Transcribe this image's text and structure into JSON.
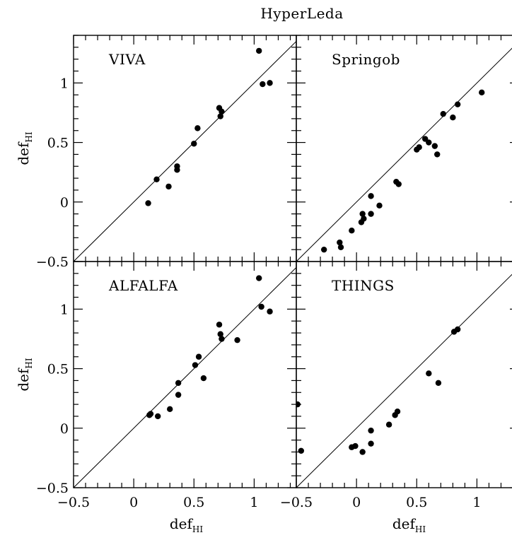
{
  "figure": {
    "title": "HyperLeda"
  },
  "chart_data": [
    {
      "type": "scatter",
      "panel": "VIVA",
      "xlabel": "def",
      "xlabel_sub": "HI",
      "ylabel": "def",
      "ylabel_sub": "HI",
      "xlim": [
        -0.5,
        1.35
      ],
      "ylim": [
        -0.5,
        1.4
      ],
      "xticks": [
        "-0.5",
        "0",
        "0.5",
        "1"
      ],
      "yticks": [
        "-0.5",
        "0",
        "0.5",
        "1"
      ],
      "reference_line": "y = x",
      "x": [
        0.12,
        0.19,
        0.29,
        0.36,
        0.36,
        0.5,
        0.53,
        0.71,
        0.72,
        0.73,
        1.04,
        1.07,
        1.13
      ],
      "y": [
        -0.01,
        0.19,
        0.13,
        0.3,
        0.27,
        0.49,
        0.62,
        0.79,
        0.72,
        0.76,
        1.27,
        0.99,
        1.0
      ]
    },
    {
      "type": "scatter",
      "panel": "Springob",
      "xlabel": "def",
      "xlabel_sub": "HI",
      "ylabel": "",
      "ylabel_sub": "",
      "xlim": [
        -0.5,
        1.35
      ],
      "ylim": [
        -0.5,
        1.4
      ],
      "xticks": [
        "-0.5",
        "0",
        "0.5",
        "1"
      ],
      "yticks": [
        "-0.5",
        "0",
        "0.5",
        "1"
      ],
      "reference_line": "y = x",
      "x": [
        -0.27,
        -0.14,
        -0.13,
        -0.04,
        0.04,
        0.05,
        0.06,
        0.12,
        0.12,
        0.19,
        0.33,
        0.35,
        0.5,
        0.52,
        0.57,
        0.6,
        0.65,
        0.67,
        0.72,
        0.8,
        0.84,
        1.04
      ],
      "y": [
        -0.4,
        -0.34,
        -0.38,
        -0.24,
        -0.17,
        -0.1,
        -0.14,
        -0.1,
        0.05,
        -0.03,
        0.17,
        0.15,
        0.44,
        0.46,
        0.53,
        0.5,
        0.47,
        0.4,
        0.74,
        0.71,
        0.82,
        0.92
      ]
    },
    {
      "type": "scatter",
      "panel": "ALFALFA",
      "xlabel": "def",
      "xlabel_sub": "HI",
      "ylabel": "def",
      "ylabel_sub": "HI",
      "xlim": [
        -0.5,
        1.35
      ],
      "ylim": [
        -0.5,
        1.4
      ],
      "xticks": [
        "-0.5",
        "0",
        "0.5",
        "1"
      ],
      "yticks": [
        "-0.5",
        "0",
        "0.5",
        "1"
      ],
      "reference_line": "y = x",
      "x": [
        0.13,
        0.14,
        0.2,
        0.3,
        0.37,
        0.37,
        0.51,
        0.54,
        0.58,
        0.71,
        0.72,
        0.73,
        0.86,
        1.04,
        1.06,
        1.13
      ],
      "y": [
        0.11,
        0.12,
        0.1,
        0.16,
        0.28,
        0.38,
        0.53,
        0.6,
        0.42,
        0.87,
        0.79,
        0.75,
        0.74,
        1.26,
        1.02,
        0.98
      ]
    },
    {
      "type": "scatter",
      "panel": "THINGS",
      "xlabel": "def",
      "xlabel_sub": "HI",
      "ylabel": "",
      "ylabel_sub": "",
      "xlim": [
        -0.5,
        1.35
      ],
      "ylim": [
        -0.5,
        1.4
      ],
      "xticks": [
        "-0.5",
        "0",
        "0.5",
        "1"
      ],
      "yticks": [
        "-0.5",
        "0",
        "0.5",
        "1"
      ],
      "reference_line": "y = x",
      "x": [
        -0.49,
        -0.46,
        -0.04,
        -0.01,
        0.05,
        0.12,
        0.12,
        0.27,
        0.32,
        0.34,
        0.6,
        0.68,
        0.81,
        0.84
      ],
      "y": [
        0.2,
        -0.19,
        -0.16,
        -0.15,
        -0.2,
        -0.13,
        -0.02,
        0.03,
        0.11,
        0.14,
        0.46,
        0.38,
        0.81,
        0.83
      ]
    }
  ]
}
